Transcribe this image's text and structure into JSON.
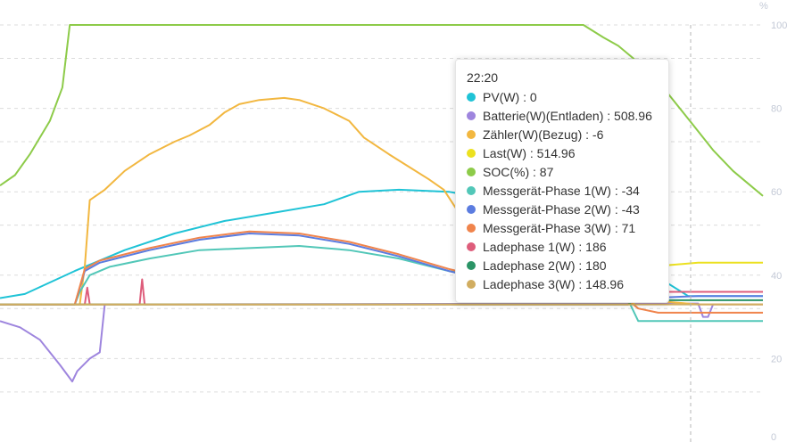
{
  "chart_data": {
    "type": "line",
    "right_axis": {
      "unit_label": "%",
      "ticks": [
        "100",
        "80",
        "60",
        "40",
        "20",
        "0"
      ],
      "ylim": [
        0,
        100
      ]
    },
    "cursor_time": "22:20",
    "series": [
      {
        "name": "PV(W)",
        "color": "#1fc3d6",
        "points": [
          [
            0,
            34.5
          ],
          [
            5,
            35.5
          ],
          [
            15,
            41
          ],
          [
            25,
            46
          ],
          [
            35,
            50
          ],
          [
            45,
            53
          ],
          [
            55,
            55
          ],
          [
            65,
            57
          ],
          [
            72,
            60
          ],
          [
            80,
            60.5
          ],
          [
            90,
            60
          ],
          [
            100,
            58
          ],
          [
            107,
            56
          ],
          [
            112,
            52
          ],
          [
            117,
            46.5
          ],
          [
            122,
            44
          ],
          [
            127,
            42
          ],
          [
            130,
            40
          ],
          [
            134,
            38
          ],
          [
            138,
            35
          ],
          [
            145,
            35
          ],
          [
            148,
            35
          ],
          [
            153,
            35
          ]
        ]
      },
      {
        "name": "Batterie(W)(Entladen)",
        "color": "#9e85de",
        "points": [
          [
            0,
            29
          ],
          [
            4,
            27.5
          ],
          [
            8,
            24.5
          ],
          [
            12,
            18.5
          ],
          [
            14.5,
            14.5
          ],
          [
            15.5,
            17
          ],
          [
            18,
            20
          ],
          [
            20,
            21.5
          ],
          [
            21,
            33
          ],
          [
            140,
            33.2
          ],
          [
            141,
            30
          ],
          [
            142,
            30
          ],
          [
            143,
            33
          ],
          [
            153,
            33
          ]
        ]
      },
      {
        "name": "Zähler(W)(Bezug)",
        "color": "#f2b740",
        "points": [
          [
            0,
            33
          ],
          [
            16,
            33
          ],
          [
            17,
            42
          ],
          [
            18,
            58
          ],
          [
            21,
            60.5
          ],
          [
            25,
            65
          ],
          [
            30,
            69
          ],
          [
            35,
            72
          ],
          [
            38,
            73.5
          ],
          [
            42,
            76
          ],
          [
            45,
            79
          ],
          [
            48,
            81
          ],
          [
            52,
            82
          ],
          [
            57,
            82.5
          ],
          [
            60,
            82
          ],
          [
            65,
            80
          ],
          [
            70,
            77
          ],
          [
            73,
            73
          ],
          [
            78,
            69
          ],
          [
            82,
            66
          ],
          [
            86,
            63
          ],
          [
            89,
            60.5
          ],
          [
            92,
            55
          ],
          [
            96,
            49
          ],
          [
            100,
            45
          ],
          [
            105,
            40
          ],
          [
            110,
            38
          ],
          [
            120,
            36
          ],
          [
            130,
            34
          ],
          [
            140,
            33
          ],
          [
            148,
            33
          ],
          [
            153,
            33
          ]
        ]
      },
      {
        "name": "Last(W)",
        "color": "#ece11f",
        "points": [
          [
            0,
            33
          ],
          [
            127,
            33
          ],
          [
            130,
            42
          ],
          [
            135,
            42.5
          ],
          [
            140,
            43
          ],
          [
            145,
            43
          ],
          [
            153,
            43
          ]
        ]
      },
      {
        "name": "SOC(%)",
        "color": "#8dcb49",
        "points": [
          [
            0,
            61.5
          ],
          [
            3,
            64
          ],
          [
            6,
            69
          ],
          [
            10,
            77
          ],
          [
            12.5,
            85
          ],
          [
            14,
            100
          ],
          [
            18,
            100
          ],
          [
            30,
            100
          ],
          [
            50,
            100
          ],
          [
            70,
            100
          ],
          [
            90,
            100
          ],
          [
            110,
            100
          ],
          [
            117,
            100
          ],
          [
            121,
            97
          ],
          [
            124,
            95
          ],
          [
            128,
            91
          ],
          [
            132,
            86.5
          ],
          [
            135,
            82
          ],
          [
            139,
            76
          ],
          [
            143,
            70
          ],
          [
            147,
            65
          ],
          [
            150,
            62
          ],
          [
            153,
            59
          ]
        ]
      },
      {
        "name": "Messgerät-Phase 1(W)",
        "color": "#52c7b8",
        "points": [
          [
            0,
            33
          ],
          [
            15,
            33
          ],
          [
            16,
            36
          ],
          [
            18,
            40
          ],
          [
            22,
            42
          ],
          [
            30,
            44
          ],
          [
            40,
            46
          ],
          [
            50,
            46.5
          ],
          [
            60,
            47
          ],
          [
            70,
            46
          ],
          [
            80,
            44
          ],
          [
            90,
            41
          ],
          [
            100,
            39
          ],
          [
            110,
            37
          ],
          [
            120,
            35
          ],
          [
            126,
            34
          ],
          [
            128,
            29
          ],
          [
            135,
            29
          ],
          [
            145,
            29
          ],
          [
            153,
            29
          ]
        ]
      },
      {
        "name": "Messgerät-Phase 2(W)",
        "color": "#5b7ce0",
        "points": [
          [
            0,
            33
          ],
          [
            15,
            33
          ],
          [
            17,
            41
          ],
          [
            20,
            43
          ],
          [
            30,
            46
          ],
          [
            40,
            48.5
          ],
          [
            50,
            50
          ],
          [
            60,
            49.5
          ],
          [
            70,
            47.5
          ],
          [
            80,
            44.5
          ],
          [
            90,
            41
          ],
          [
            100,
            38
          ],
          [
            110,
            36
          ],
          [
            120,
            35
          ],
          [
            126,
            34
          ],
          [
            130,
            34.5
          ],
          [
            140,
            35
          ],
          [
            153,
            35
          ]
        ]
      },
      {
        "name": "Messgerät-Phase 3(W)",
        "color": "#f0844c",
        "points": [
          [
            0,
            33
          ],
          [
            15,
            33
          ],
          [
            17,
            41.5
          ],
          [
            20,
            43.5
          ],
          [
            30,
            46.5
          ],
          [
            40,
            49
          ],
          [
            50,
            50.5
          ],
          [
            60,
            50
          ],
          [
            70,
            48
          ],
          [
            80,
            45
          ],
          [
            90,
            41.5
          ],
          [
            100,
            38.5
          ],
          [
            110,
            36.5
          ],
          [
            120,
            35
          ],
          [
            126,
            34
          ],
          [
            128,
            32
          ],
          [
            132,
            31
          ],
          [
            140,
            31
          ],
          [
            153,
            31
          ]
        ]
      },
      {
        "name": "Ladephase 1(W)",
        "color": "#de5d7b",
        "points": [
          [
            0,
            33
          ],
          [
            17,
            33
          ],
          [
            17.5,
            37
          ],
          [
            18,
            33
          ],
          [
            28,
            33
          ],
          [
            28.5,
            39
          ],
          [
            29,
            33
          ],
          [
            126,
            33
          ],
          [
            127,
            36
          ],
          [
            130,
            36
          ],
          [
            140,
            36
          ],
          [
            153,
            36
          ]
        ]
      },
      {
        "name": "Ladephase 2(W)",
        "color": "#2b9466",
        "points": [
          [
            0,
            33
          ],
          [
            126,
            33
          ],
          [
            127,
            34
          ],
          [
            140,
            34
          ],
          [
            153,
            34
          ]
        ]
      },
      {
        "name": "Ladephase 3(W)",
        "color": "#d1ad60",
        "points": [
          [
            0,
            33
          ],
          [
            153,
            33
          ]
        ]
      }
    ]
  },
  "tooltip": {
    "title": "22:20",
    "rows": [
      {
        "label": "PV(W) : 0",
        "color": "#1fc3d6"
      },
      {
        "label": "Batterie(W)(Entladen) : 508.96",
        "color": "#9e85de"
      },
      {
        "label": "Zähler(W)(Bezug) : -6",
        "color": "#f2b740"
      },
      {
        "label": "Last(W) : 514.96",
        "color": "#ece11f"
      },
      {
        "label": "SOC(%) : 87",
        "color": "#8dcb49"
      },
      {
        "label": "Messgerät-Phase 1(W) : -34",
        "color": "#52c7b8"
      },
      {
        "label": "Messgerät-Phase 2(W) : -43",
        "color": "#5b7ce0"
      },
      {
        "label": "Messgerät-Phase 3(W) : 71",
        "color": "#f0844c"
      },
      {
        "label": "Ladephase 1(W) : 186",
        "color": "#de5d7b"
      },
      {
        "label": "Ladephase 2(W) : 180",
        "color": "#2b9466"
      },
      {
        "label": "Ladephase 3(W) : 148.96",
        "color": "#d1ad60"
      }
    ]
  }
}
